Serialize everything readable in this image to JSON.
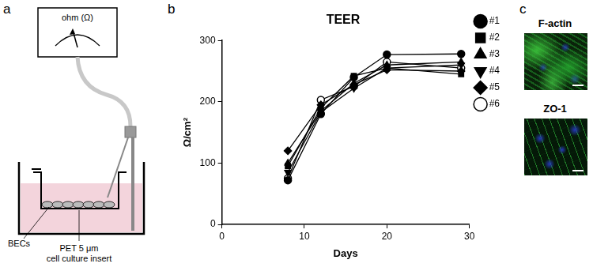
{
  "panel_a": {
    "letter": "a",
    "meter_label": "ohm (Ω)",
    "cell_label": "BECs",
    "insert_label": [
      "PET 5 μm",
      "cell culture insert"
    ]
  },
  "panel_b": {
    "letter": "b"
  },
  "chart_data": {
    "type": "line",
    "title": "TEER",
    "x_label": "Days",
    "y_label": "Ω/cm²",
    "x": [
      8,
      12,
      16,
      20,
      29
    ],
    "xlim": [
      0,
      30
    ],
    "xticks": [
      0,
      10,
      20,
      30
    ],
    "ylim": [
      0,
      300
    ],
    "yticks": [
      0,
      100,
      200,
      300
    ],
    "grid": false,
    "legend": "right",
    "series": [
      {
        "name": "#1",
        "color": "#000000",
        "marker": "circle",
        "line_style": "solid",
        "values": [
          72,
          180,
          240,
          277,
          278
        ]
      },
      {
        "name": "#2",
        "color": "#000000",
        "marker": "square",
        "line_style": "solid",
        "values": [
          95,
          190,
          242,
          255,
          245
        ]
      },
      {
        "name": "#3",
        "color": "#000000",
        "marker": "triangle",
        "line_style": "solid",
        "values": [
          100,
          185,
          230,
          260,
          265
        ]
      },
      {
        "name": "#4",
        "color": "#000000",
        "marker": "triangle_down",
        "line_style": "solid",
        "values": [
          85,
          183,
          222,
          255,
          260
        ]
      },
      {
        "name": "#5",
        "color": "#000000",
        "marker": "diamond",
        "line_style": "solid",
        "values": [
          120,
          195,
          228,
          252,
          250
        ]
      },
      {
        "name": "#6",
        "color": "#000000",
        "marker": "open_circle",
        "line_style": "solid",
        "values": [
          75,
          203,
          225,
          265,
          255
        ]
      }
    ]
  },
  "panel_c": {
    "letter": "c",
    "images": [
      {
        "label": "F-actin"
      },
      {
        "label": "ZO-1"
      }
    ]
  }
}
